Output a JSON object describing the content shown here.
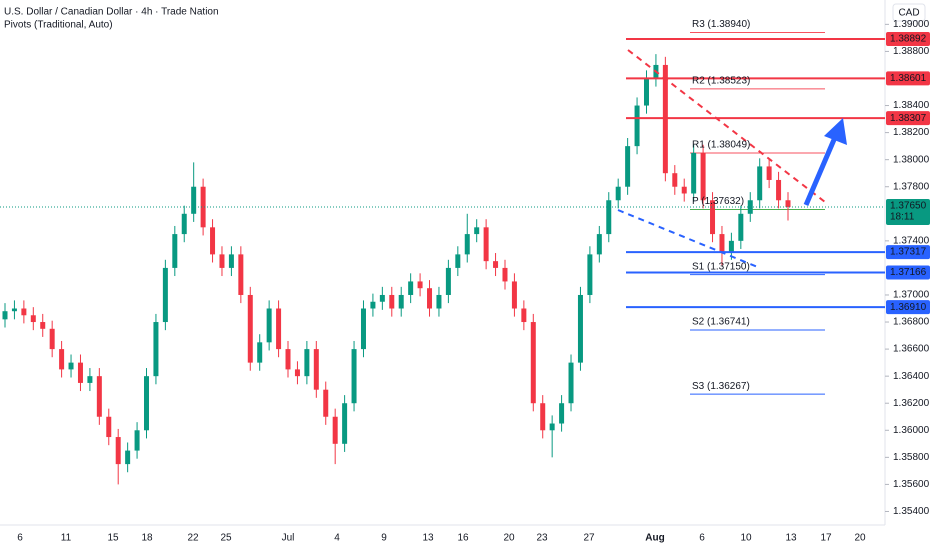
{
  "chart_data": {
    "type": "candlestick",
    "title": "U.S. Dollar / Canadian Dollar · 4h · Trade Nation",
    "subtitle": "Pivots (Traditional, Auto)",
    "currency": "CAD",
    "up_color": "#089981",
    "down_color": "#f23645",
    "open": [
      1.3682,
      1.3688,
      1.369,
      1.3685,
      1.368,
      1.3675,
      1.366,
      1.3645,
      1.365,
      1.3635,
      1.364,
      1.361,
      1.3595,
      1.3575,
      1.3585,
      1.36,
      1.364,
      1.368,
      1.372,
      1.3745,
      1.376,
      1.378,
      1.375,
      1.373,
      1.372,
      1.373,
      1.37,
      1.365,
      1.3665,
      1.369,
      1.366,
      1.3645,
      1.364,
      1.366,
      1.363,
      1.361,
      1.359,
      1.362,
      1.366,
      1.369,
      1.3695,
      1.37,
      1.369,
      1.37,
      1.371,
      1.3705,
      1.369,
      1.37,
      1.372,
      1.373,
      1.3745,
      1.375,
      1.3725,
      1.372,
      1.371,
      1.369,
      1.368,
      1.362,
      1.36,
      1.3605,
      1.362,
      1.365,
      1.37,
      1.373,
      1.3745,
      1.377,
      1.378,
      1.381,
      1.384,
      1.386,
      1.387,
      1.379,
      1.378,
      1.3775,
      1.3805,
      1.377,
      1.3745,
      1.3732,
      1.374,
      1.376,
      1.377,
      1.3795,
      1.3785,
      1.377
    ],
    "high": [
      1.3694,
      1.3696,
      1.3696,
      1.3691,
      1.3686,
      1.3681,
      1.3666,
      1.3656,
      1.3656,
      1.3646,
      1.3646,
      1.3616,
      1.3601,
      1.3591,
      1.3606,
      1.3646,
      1.3686,
      1.3726,
      1.3751,
      1.3766,
      1.3798,
      1.3786,
      1.3756,
      1.3736,
      1.3736,
      1.3736,
      1.3706,
      1.3671,
      1.3696,
      1.3696,
      1.3666,
      1.3651,
      1.3666,
      1.3666,
      1.3636,
      1.3616,
      1.3626,
      1.3666,
      1.3696,
      1.3701,
      1.3706,
      1.3706,
      1.3706,
      1.3716,
      1.3716,
      1.3711,
      1.3706,
      1.3726,
      1.3736,
      1.376,
      1.3756,
      1.3756,
      1.3731,
      1.3726,
      1.3716,
      1.3696,
      1.3686,
      1.3626,
      1.3611,
      1.3626,
      1.3656,
      1.3706,
      1.3736,
      1.3751,
      1.3776,
      1.3786,
      1.3816,
      1.3846,
      1.3866,
      1.3878,
      1.3876,
      1.3796,
      1.3786,
      1.3811,
      1.3811,
      1.3776,
      1.3751,
      1.3746,
      1.3766,
      1.3776,
      1.3801,
      1.3801,
      1.3791,
      1.3776
    ],
    "low": [
      1.3676,
      1.3682,
      1.3679,
      1.3674,
      1.3669,
      1.3654,
      1.3639,
      1.3639,
      1.3629,
      1.3629,
      1.3604,
      1.3589,
      1.356,
      1.3569,
      1.3579,
      1.3594,
      1.3634,
      1.3674,
      1.3714,
      1.3739,
      1.3754,
      1.3744,
      1.3724,
      1.3714,
      1.3714,
      1.3694,
      1.3644,
      1.3644,
      1.3659,
      1.3654,
      1.3639,
      1.3634,
      1.3634,
      1.3624,
      1.3604,
      1.3575,
      1.3584,
      1.3614,
      1.3654,
      1.3684,
      1.3689,
      1.3684,
      1.3684,
      1.3694,
      1.3699,
      1.3684,
      1.3684,
      1.3694,
      1.3714,
      1.3724,
      1.3739,
      1.3719,
      1.3714,
      1.3704,
      1.3684,
      1.3674,
      1.3614,
      1.3594,
      1.358,
      1.3599,
      1.3614,
      1.3644,
      1.3694,
      1.3724,
      1.3739,
      1.3764,
      1.3774,
      1.3804,
      1.3834,
      1.3854,
      1.3784,
      1.3774,
      1.3769,
      1.3769,
      1.3764,
      1.3739,
      1.3722,
      1.3726,
      1.3734,
      1.3754,
      1.3764,
      1.3779,
      1.3764,
      1.3755
    ],
    "close": [
      1.3688,
      1.369,
      1.3685,
      1.368,
      1.3675,
      1.366,
      1.3645,
      1.365,
      1.3635,
      1.364,
      1.361,
      1.3595,
      1.3575,
      1.3585,
      1.36,
      1.364,
      1.368,
      1.372,
      1.3745,
      1.376,
      1.378,
      1.375,
      1.373,
      1.372,
      1.373,
      1.37,
      1.365,
      1.3665,
      1.369,
      1.366,
      1.3645,
      1.364,
      1.366,
      1.363,
      1.361,
      1.359,
      1.362,
      1.366,
      1.369,
      1.3695,
      1.37,
      1.369,
      1.37,
      1.371,
      1.3705,
      1.369,
      1.37,
      1.372,
      1.373,
      1.3745,
      1.375,
      1.3725,
      1.372,
      1.371,
      1.369,
      1.368,
      1.362,
      1.36,
      1.3605,
      1.362,
      1.365,
      1.37,
      1.373,
      1.3745,
      1.377,
      1.378,
      1.381,
      1.384,
      1.386,
      1.387,
      1.379,
      1.378,
      1.3775,
      1.3805,
      1.377,
      1.3745,
      1.3732,
      1.374,
      1.376,
      1.377,
      1.3795,
      1.3785,
      1.377,
      1.3765
    ],
    "ylim": [
      1.353,
      1.3918
    ],
    "yticks": [
      {
        "value": 1.39,
        "label": "1.39000"
      },
      {
        "value": 1.388,
        "label": "1.38800"
      },
      {
        "value": 1.384,
        "label": "1.38400"
      },
      {
        "value": 1.382,
        "label": "1.38200"
      },
      {
        "value": 1.38,
        "label": "1.38000"
      },
      {
        "value": 1.378,
        "label": "1.37800"
      },
      {
        "value": 1.374,
        "label": "1.37400"
      },
      {
        "value": 1.37,
        "label": "1.37000"
      },
      {
        "value": 1.368,
        "label": "1.36800"
      },
      {
        "value": 1.366,
        "label": "1.36600"
      },
      {
        "value": 1.364,
        "label": "1.36400"
      },
      {
        "value": 1.362,
        "label": "1.36200"
      },
      {
        "value": 1.36,
        "label": "1.36000"
      },
      {
        "value": 1.358,
        "label": "1.35800"
      },
      {
        "value": 1.356,
        "label": "1.35600"
      },
      {
        "value": 1.354,
        "label": "1.35400"
      }
    ],
    "x_labels": [
      "6",
      "11",
      "15",
      "18",
      "22",
      "25",
      "Jul",
      "4",
      "9",
      "13",
      "16",
      "20",
      "23",
      "27",
      "Aug",
      "6",
      "10",
      "13",
      "17",
      "20"
    ],
    "levels": [
      {
        "value": 1.38892,
        "label": "1.38892",
        "color": "#f23645"
      },
      {
        "value": 1.38601,
        "label": "1.38601",
        "color": "#f23645"
      },
      {
        "value": 1.38307,
        "label": "1.38307",
        "color": "#f23645"
      },
      {
        "value": 1.37317,
        "label": "1.37317",
        "color": "#2962ff"
      },
      {
        "value": 1.37166,
        "label": "1.37166",
        "color": "#2962ff"
      },
      {
        "value": 1.3691,
        "label": "1.36910",
        "color": "#2962ff"
      }
    ],
    "current": {
      "value": 1.3765,
      "label": "1.37650",
      "timer": "18:11",
      "color": "#089981"
    },
    "pivots": [
      {
        "name": "R3 (1.38940)",
        "value": 1.3894,
        "color": "#f7525f"
      },
      {
        "name": "R2 (1.38523)",
        "value": 1.38523,
        "color": "#f7525f"
      },
      {
        "name": "R1 (1.38049)",
        "value": 1.38049,
        "color": "#f7525f"
      },
      {
        "name": "P (1.37632)",
        "value": 1.37632,
        "color": "#4caf50"
      },
      {
        "name": "S1 (1.37150)",
        "value": 1.3715,
        "color": "#2962ff"
      },
      {
        "name": "S2 (1.36741)",
        "value": 1.36741,
        "color": "#2962ff"
      },
      {
        "name": "S3 (1.36267)",
        "value": 1.36267,
        "color": "#2962ff"
      }
    ]
  }
}
